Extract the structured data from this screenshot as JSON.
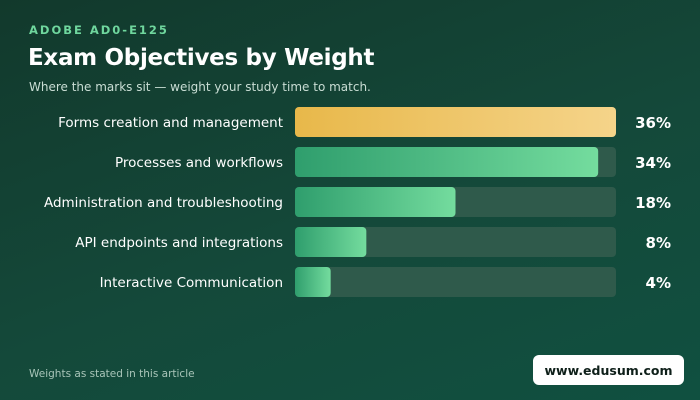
{
  "header": {
    "eyebrow": "ADOBE AD0-E125",
    "title": "Exam Objectives by Weight",
    "subtitle": "Where the marks sit — weight your study time to match."
  },
  "footer": {
    "note": "Weights as stated in this article",
    "site": "www.edusum.com"
  },
  "colors": {
    "highlight_start": "#e8b84a",
    "highlight_end": "#f5d48a",
    "bar_start": "#2f9e6d",
    "bar_end": "#74dc9e",
    "track": "#2f5a4b"
  },
  "chart_data": {
    "type": "bar",
    "orientation": "horizontal",
    "categories": [
      "Forms creation and management",
      "Processes and workflows",
      "Administration and troubleshooting",
      "API endpoints and integrations",
      "Interactive Communication"
    ],
    "values": [
      36,
      34,
      18,
      8,
      4
    ],
    "value_labels": [
      "36%",
      "34%",
      "18%",
      "8%",
      "4%"
    ],
    "xlim": [
      0,
      36
    ],
    "highlight_index": 0,
    "grid": false
  }
}
